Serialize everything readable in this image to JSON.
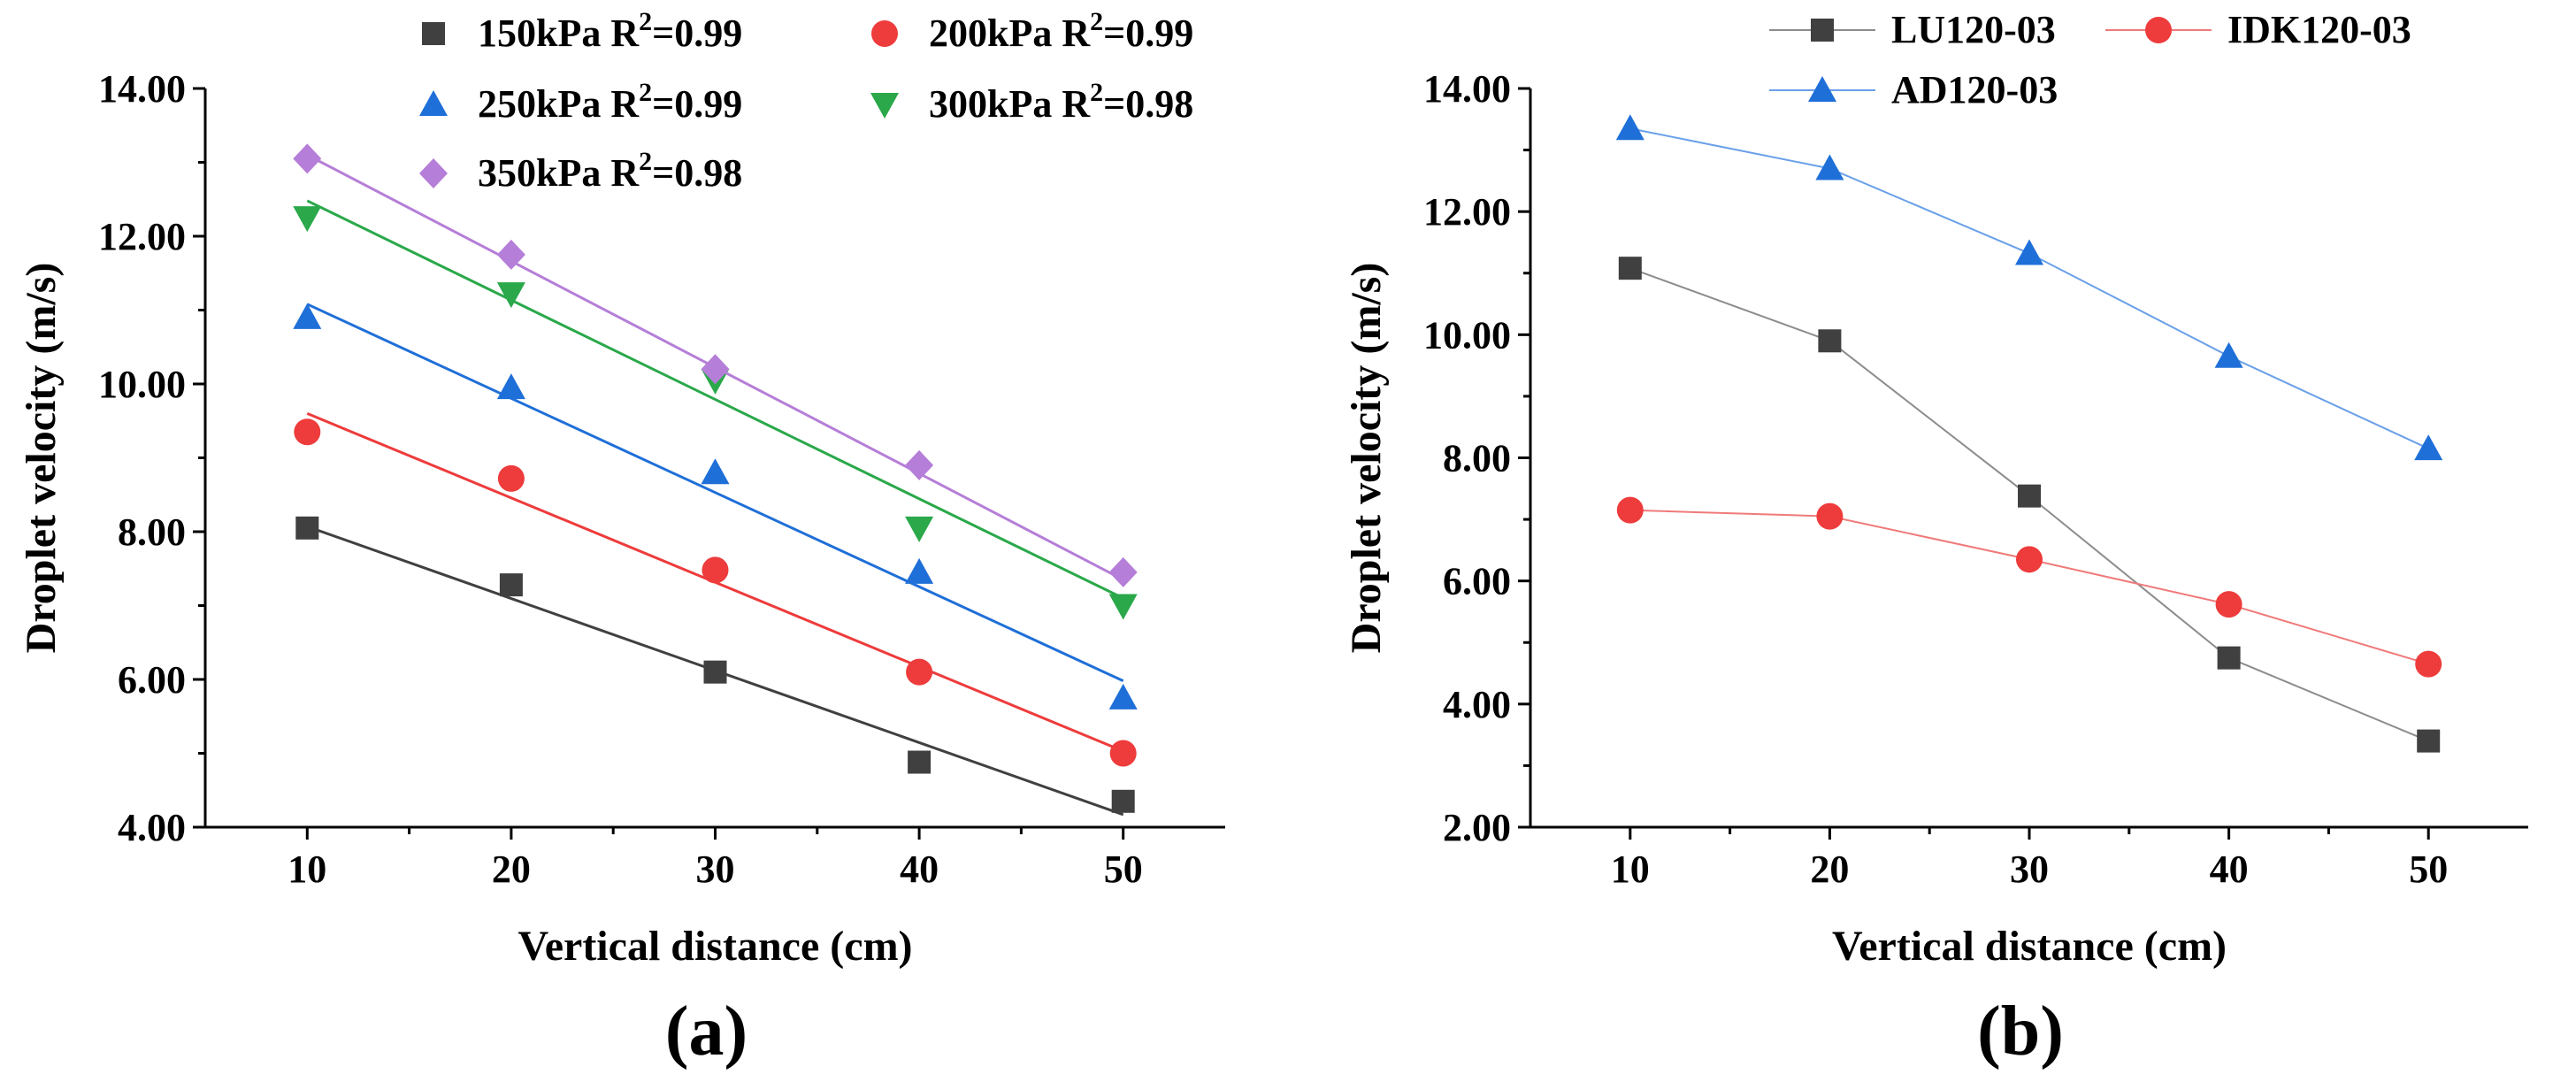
{
  "chart_data": [
    {
      "type": "scatter",
      "panel_label": "(a)",
      "xlabel": "Vertical distance (cm)",
      "ylabel": "Droplet velocity (m/s)",
      "xlim": [
        5,
        55
      ],
      "ylim": [
        4,
        14
      ],
      "x_ticks": [
        "10",
        "20",
        "30",
        "40",
        "50"
      ],
      "y_ticks": [
        "4.00",
        "6.00",
        "8.00",
        "10.00",
        "12.00",
        "14.00"
      ],
      "x": [
        10,
        20,
        30,
        40,
        50
      ],
      "fit_lines": true,
      "legend_placement": "top",
      "series": [
        {
          "name": "150kPa",
          "r2": "R²=0.99",
          "color": "#404040",
          "marker": "square",
          "values": [
            8.05,
            7.28,
            6.1,
            4.88,
            4.35
          ],
          "fit": [
            8.07,
            4.17
          ]
        },
        {
          "name": "200kPa",
          "r2": "R²=0.99",
          "color": "#ee3b3b",
          "marker": "circle",
          "values": [
            9.35,
            8.72,
            7.48,
            6.1,
            5.0
          ],
          "fit": [
            9.6,
            5.03
          ]
        },
        {
          "name": "250kPa",
          "r2": "R²=0.99",
          "color": "#1f6fd8",
          "marker": "triangle-up",
          "values": [
            10.9,
            9.95,
            8.8,
            7.45,
            5.75
          ],
          "fit": [
            11.08,
            5.98
          ]
        },
        {
          "name": "300kPa",
          "r2": "R²=0.98",
          "color": "#2aa84a",
          "marker": "triangle-down",
          "values": [
            12.25,
            11.22,
            10.05,
            8.05,
            7.0
          ],
          "fit": [
            12.48,
            7.1
          ]
        },
        {
          "name": "350kPa",
          "r2": "R²=0.98",
          "color": "#b57ed8",
          "marker": "diamond",
          "values": [
            13.05,
            11.75,
            10.2,
            8.9,
            7.45
          ],
          "fit": [
            13.1,
            7.35
          ]
        }
      ]
    },
    {
      "type": "line",
      "panel_label": "(b)",
      "xlabel": "Vertical distance (cm)",
      "ylabel": "Droplet velocity (m/s)",
      "xlim": [
        5,
        55
      ],
      "ylim": [
        2,
        14
      ],
      "x_ticks": [
        "10",
        "20",
        "30",
        "40",
        "50"
      ],
      "y_ticks": [
        "2.00",
        "4.00",
        "6.00",
        "8.00",
        "10.00",
        "12.00",
        "14.00"
      ],
      "x": [
        10,
        20,
        30,
        40,
        50
      ],
      "legend_placement": "top",
      "series": [
        {
          "name": "LU120-03",
          "color": "#404040",
          "line_color": "#8c8c8c",
          "marker": "square",
          "values": [
            11.08,
            9.9,
            7.38,
            4.75,
            3.4
          ]
        },
        {
          "name": "IDK120-03",
          "color": "#ee3b3b",
          "line_color": "#f07a7a",
          "marker": "circle",
          "values": [
            7.15,
            7.05,
            6.35,
            5.62,
            4.65
          ]
        },
        {
          "name": "AD120-03",
          "color": "#1f6fd8",
          "line_color": "#6aa0e8",
          "marker": "triangle-up",
          "values": [
            13.35,
            12.7,
            11.32,
            9.65,
            8.15
          ]
        }
      ]
    }
  ]
}
